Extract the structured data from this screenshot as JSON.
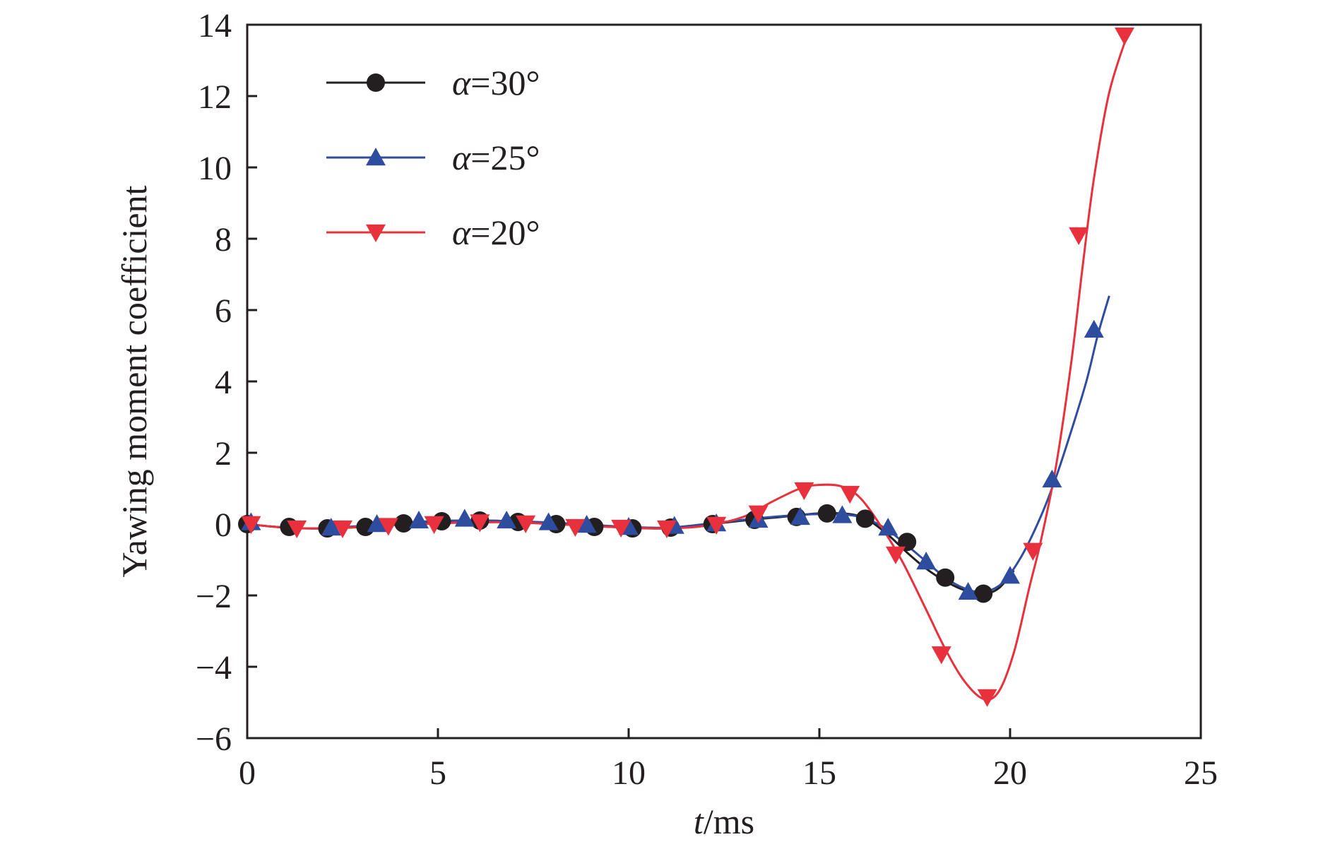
{
  "chart_data": {
    "type": "line",
    "xlabel": {
      "var": "t",
      "unit": "/ms"
    },
    "ylabel": "Yawing moment coefficient",
    "xlim": [
      0,
      25
    ],
    "ylim": [
      -6,
      14
    ],
    "xticks": [
      0,
      5,
      10,
      15,
      20,
      25
    ],
    "yticks": [
      -6,
      -4,
      -2,
      0,
      2,
      4,
      6,
      8,
      10,
      12,
      14
    ],
    "xtick_labels": [
      "0",
      "5",
      "10",
      "15",
      "20",
      "25"
    ],
    "ytick_labels": [
      "−6",
      "−4",
      "−2",
      "0",
      "2",
      "4",
      "6",
      "8",
      "10",
      "12",
      "14"
    ],
    "grid": false,
    "legend_position": "top-left",
    "series": [
      {
        "name": "α=30°",
        "label_var": "α",
        "label_rest": "=30°",
        "color": "#231f20",
        "marker": "circle",
        "curve": [
          [
            0,
            0
          ],
          [
            1,
            -0.1
          ],
          [
            2,
            -0.12
          ],
          [
            3,
            -0.08
          ],
          [
            4,
            0.02
          ],
          [
            5,
            0.08
          ],
          [
            6,
            0.1
          ],
          [
            7,
            0.08
          ],
          [
            8,
            0.02
          ],
          [
            9,
            -0.05
          ],
          [
            10,
            -0.1
          ],
          [
            11,
            -0.12
          ],
          [
            12,
            -0.02
          ],
          [
            13,
            0.1
          ],
          [
            14,
            0.2
          ],
          [
            15,
            0.3
          ],
          [
            15.8,
            0.28
          ],
          [
            16.3,
            0.1
          ],
          [
            16.8,
            -0.3
          ],
          [
            17.3,
            -0.8
          ],
          [
            17.8,
            -1.25
          ],
          [
            18.3,
            -1.6
          ],
          [
            18.8,
            -1.85
          ],
          [
            19.3,
            -1.95
          ],
          [
            19.7,
            -1.8
          ],
          [
            20.1,
            -1.3
          ]
        ],
        "markers": [
          [
            0,
            0
          ],
          [
            1.1,
            -0.08
          ],
          [
            2.1,
            -0.12
          ],
          [
            3.1,
            -0.08
          ],
          [
            4.1,
            0.02
          ],
          [
            5.1,
            0.08
          ],
          [
            6.1,
            0.1
          ],
          [
            7.1,
            0.06
          ],
          [
            8.1,
            0.0
          ],
          [
            9.1,
            -0.08
          ],
          [
            10.1,
            -0.12
          ],
          [
            11.1,
            -0.1
          ],
          [
            12.2,
            0.0
          ],
          [
            13.3,
            0.12
          ],
          [
            14.4,
            0.2
          ],
          [
            15.2,
            0.3
          ],
          [
            16.2,
            0.15
          ],
          [
            17.3,
            -0.5
          ],
          [
            18.3,
            -1.5
          ],
          [
            19.3,
            -1.95
          ]
        ]
      },
      {
        "name": "α=25°",
        "label_var": "α",
        "label_rest": "=25°",
        "color": "#2e4d9e",
        "marker": "triangle-up",
        "curve": [
          [
            0,
            0
          ],
          [
            1,
            -0.1
          ],
          [
            2,
            -0.12
          ],
          [
            3,
            -0.05
          ],
          [
            4,
            0.03
          ],
          [
            5,
            0.09
          ],
          [
            6,
            0.1
          ],
          [
            7,
            0.08
          ],
          [
            8,
            0.04
          ],
          [
            9,
            -0.02
          ],
          [
            10,
            -0.08
          ],
          [
            11,
            -0.1
          ],
          [
            12,
            0.0
          ],
          [
            13,
            0.12
          ],
          [
            14,
            0.22
          ],
          [
            15,
            0.28
          ],
          [
            16,
            0.22
          ],
          [
            16.7,
            -0.1
          ],
          [
            17.3,
            -0.6
          ],
          [
            17.8,
            -1.05
          ],
          [
            18.3,
            -1.5
          ],
          [
            18.8,
            -1.8
          ],
          [
            19.3,
            -1.9
          ],
          [
            19.8,
            -1.65
          ],
          [
            20.3,
            -0.9
          ],
          [
            20.8,
            0.2
          ],
          [
            21.2,
            1.3
          ],
          [
            21.6,
            2.6
          ],
          [
            22.0,
            4.0
          ],
          [
            22.3,
            5.3
          ],
          [
            22.6,
            6.4
          ]
        ],
        "markers": [
          [
            0.1,
            0.05
          ],
          [
            2.2,
            -0.1
          ],
          [
            3.4,
            0.0
          ],
          [
            4.5,
            0.1
          ],
          [
            5.7,
            0.15
          ],
          [
            6.8,
            0.1
          ],
          [
            7.9,
            0.05
          ],
          [
            8.9,
            -0.02
          ],
          [
            10.0,
            -0.08
          ],
          [
            11.2,
            -0.05
          ],
          [
            12.3,
            0.02
          ],
          [
            13.4,
            0.12
          ],
          [
            14.5,
            0.2
          ],
          [
            15.6,
            0.25
          ],
          [
            16.8,
            -0.1
          ],
          [
            17.8,
            -1.05
          ],
          [
            18.9,
            -1.9
          ],
          [
            20.0,
            -1.45
          ],
          [
            21.1,
            1.25
          ],
          [
            22.2,
            5.45
          ]
        ]
      },
      {
        "name": "α=20°",
        "label_var": "α",
        "label_rest": "=20°",
        "color": "#e8313c",
        "marker": "triangle-down",
        "curve": [
          [
            0,
            0
          ],
          [
            1,
            -0.1
          ],
          [
            2,
            -0.12
          ],
          [
            3,
            -0.08
          ],
          [
            4,
            -0.02
          ],
          [
            5,
            0.02
          ],
          [
            6,
            0.05
          ],
          [
            7,
            0.05
          ],
          [
            8,
            0.0
          ],
          [
            9,
            -0.05
          ],
          [
            10,
            -0.1
          ],
          [
            11,
            -0.12
          ],
          [
            12,
            -0.05
          ],
          [
            13,
            0.2
          ],
          [
            13.8,
            0.65
          ],
          [
            14.5,
            1.0
          ],
          [
            15,
            1.1
          ],
          [
            15.6,
            1.05
          ],
          [
            16.1,
            0.7
          ],
          [
            16.7,
            -0.2
          ],
          [
            17.2,
            -1.1
          ],
          [
            17.8,
            -2.4
          ],
          [
            18.3,
            -3.5
          ],
          [
            18.8,
            -4.4
          ],
          [
            19.3,
            -4.9
          ],
          [
            19.7,
            -4.7
          ],
          [
            20.1,
            -3.6
          ],
          [
            20.5,
            -1.8
          ],
          [
            20.8,
            -0.5
          ],
          [
            21.2,
            1.6
          ],
          [
            21.6,
            4.5
          ],
          [
            21.9,
            7.2
          ],
          [
            22.2,
            9.7
          ],
          [
            22.6,
            12.1
          ],
          [
            23.1,
            13.8
          ]
        ],
        "markers": [
          [
            0.1,
            0.0
          ],
          [
            1.3,
            -0.12
          ],
          [
            2.5,
            -0.12
          ],
          [
            3.7,
            -0.05
          ],
          [
            4.9,
            0.0
          ],
          [
            6.1,
            0.05
          ],
          [
            7.3,
            0.02
          ],
          [
            8.6,
            -0.08
          ],
          [
            9.8,
            -0.1
          ],
          [
            11.0,
            -0.12
          ],
          [
            12.3,
            -0.02
          ],
          [
            13.4,
            0.3
          ],
          [
            14.6,
            0.95
          ],
          [
            15.8,
            0.85
          ],
          [
            17.0,
            -0.85
          ],
          [
            18.2,
            -3.65
          ],
          [
            19.4,
            -4.85
          ],
          [
            20.6,
            -0.75
          ],
          [
            21.8,
            8.1
          ],
          [
            23.0,
            13.7
          ]
        ]
      }
    ]
  }
}
